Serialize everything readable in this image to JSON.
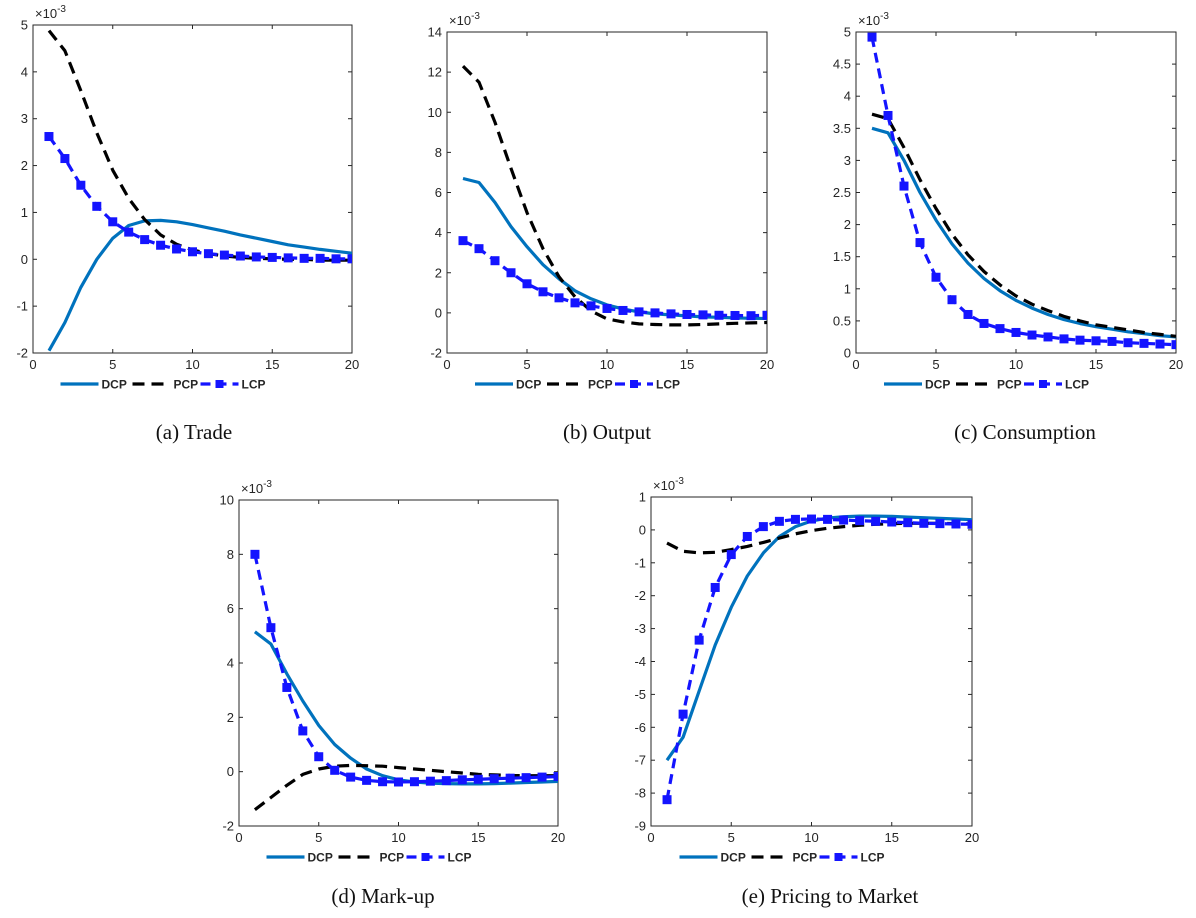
{
  "colors": {
    "dcp": "#0072BD",
    "pcp": "#000000",
    "lcp": "#1414FF",
    "axis": "#262626"
  },
  "legend_labels": [
    "DCP",
    "PCP",
    "LCP"
  ],
  "chart_data": [
    {
      "type": "line",
      "caption": "(a)  Trade",
      "exponent": "×10-3",
      "x": [
        1,
        2,
        3,
        4,
        5,
        6,
        7,
        8,
        9,
        10,
        11,
        12,
        13,
        14,
        15,
        16,
        17,
        18,
        19,
        20
      ],
      "xlim": [
        0,
        20
      ],
      "ylim": [
        -2,
        5
      ],
      "xticks": [
        0,
        5,
        10,
        15,
        20
      ],
      "yticks": [
        -2,
        -1,
        0,
        1,
        2,
        3,
        4,
        5
      ],
      "series": [
        {
          "name": "DCP",
          "values": [
            -1.95,
            -1.35,
            -0.6,
            0.0,
            0.45,
            0.72,
            0.82,
            0.83,
            0.8,
            0.74,
            0.67,
            0.6,
            0.52,
            0.45,
            0.38,
            0.31,
            0.26,
            0.21,
            0.17,
            0.13
          ]
        },
        {
          "name": "PCP",
          "values": [
            4.88,
            4.45,
            3.6,
            2.7,
            1.9,
            1.3,
            0.85,
            0.52,
            0.32,
            0.2,
            0.12,
            0.07,
            0.04,
            0.02,
            0.01,
            0.0,
            0.0,
            -0.02,
            -0.02,
            -0.02
          ]
        },
        {
          "name": "LCP",
          "values": [
            2.62,
            2.15,
            1.58,
            1.13,
            0.8,
            0.58,
            0.42,
            0.3,
            0.22,
            0.16,
            0.12,
            0.09,
            0.07,
            0.05,
            0.04,
            0.03,
            0.02,
            0.02,
            0.01,
            0.01
          ]
        }
      ]
    },
    {
      "type": "line",
      "caption": "(b)  Output",
      "exponent": "×10-3",
      "x": [
        1,
        2,
        3,
        4,
        5,
        6,
        7,
        8,
        9,
        10,
        11,
        12,
        13,
        14,
        15,
        16,
        17,
        18,
        19,
        20
      ],
      "xlim": [
        0,
        20
      ],
      "ylim": [
        -2,
        14
      ],
      "xticks": [
        0,
        5,
        10,
        15,
        20
      ],
      "yticks": [
        -2,
        0,
        2,
        4,
        6,
        8,
        10,
        12,
        14
      ],
      "series": [
        {
          "name": "DCP",
          "values": [
            6.7,
            6.5,
            5.5,
            4.3,
            3.3,
            2.4,
            1.7,
            1.1,
            0.7,
            0.4,
            0.2,
            0.05,
            -0.05,
            -0.1,
            -0.15,
            -0.2,
            -0.22,
            -0.25,
            -0.27,
            -0.28
          ]
        },
        {
          "name": "PCP",
          "values": [
            12.3,
            11.5,
            9.5,
            7.2,
            5.0,
            3.2,
            1.8,
            0.8,
            0.1,
            -0.3,
            -0.45,
            -0.55,
            -0.58,
            -0.6,
            -0.6,
            -0.58,
            -0.55,
            -0.52,
            -0.5,
            -0.48
          ]
        },
        {
          "name": "LCP",
          "values": [
            3.6,
            3.2,
            2.6,
            2.0,
            1.45,
            1.05,
            0.75,
            0.5,
            0.35,
            0.22,
            0.12,
            0.05,
            0.0,
            -0.05,
            -0.08,
            -0.1,
            -0.12,
            -0.13,
            -0.14,
            -0.12
          ]
        }
      ]
    },
    {
      "type": "line",
      "caption": "(c)  Consumption",
      "exponent": "×10-3",
      "x": [
        1,
        2,
        3,
        4,
        5,
        6,
        7,
        8,
        9,
        10,
        11,
        12,
        13,
        14,
        15,
        16,
        17,
        18,
        19,
        20
      ],
      "xlim": [
        0,
        20
      ],
      "ylim": [
        0,
        5
      ],
      "xticks": [
        0,
        5,
        10,
        15,
        20
      ],
      "yticks": [
        0,
        0.5,
        1,
        1.5,
        2,
        2.5,
        3,
        3.5,
        4,
        4.5,
        5
      ],
      "series": [
        {
          "name": "DCP",
          "values": [
            3.5,
            3.43,
            3.0,
            2.5,
            2.07,
            1.7,
            1.4,
            1.16,
            0.97,
            0.82,
            0.7,
            0.6,
            0.52,
            0.46,
            0.41,
            0.37,
            0.33,
            0.3,
            0.27,
            0.25
          ]
        },
        {
          "name": "PCP",
          "values": [
            3.72,
            3.65,
            3.2,
            2.7,
            2.25,
            1.85,
            1.53,
            1.27,
            1.06,
            0.89,
            0.76,
            0.66,
            0.57,
            0.5,
            0.44,
            0.4,
            0.36,
            0.32,
            0.29,
            0.26
          ]
        },
        {
          "name": "LCP",
          "values": [
            4.92,
            3.7,
            2.6,
            1.72,
            1.18,
            0.83,
            0.6,
            0.46,
            0.38,
            0.32,
            0.28,
            0.25,
            0.22,
            0.2,
            0.19,
            0.18,
            0.16,
            0.15,
            0.14,
            0.13
          ]
        }
      ]
    },
    {
      "type": "line",
      "caption": "(d)  Mark-up",
      "exponent": "×10-3",
      "x": [
        1,
        2,
        3,
        4,
        5,
        6,
        7,
        8,
        9,
        10,
        11,
        12,
        13,
        14,
        15,
        16,
        17,
        18,
        19,
        20
      ],
      "xlim": [
        0,
        20
      ],
      "ylim": [
        -2,
        10
      ],
      "xticks": [
        0,
        5,
        10,
        15,
        20
      ],
      "yticks": [
        -2,
        0,
        2,
        4,
        6,
        8,
        10
      ],
      "series": [
        {
          "name": "DCP",
          "values": [
            5.15,
            4.7,
            3.6,
            2.6,
            1.7,
            1.0,
            0.5,
            0.1,
            -0.15,
            -0.3,
            -0.38,
            -0.42,
            -0.44,
            -0.45,
            -0.45,
            -0.44,
            -0.42,
            -0.4,
            -0.38,
            -0.36
          ]
        },
        {
          "name": "PCP",
          "values": [
            -1.4,
            -0.95,
            -0.5,
            -0.1,
            0.1,
            0.2,
            0.23,
            0.22,
            0.2,
            0.15,
            0.1,
            0.05,
            0.0,
            -0.05,
            -0.1,
            -0.12,
            -0.14,
            -0.15,
            -0.15,
            -0.15
          ]
        },
        {
          "name": "LCP",
          "values": [
            8.0,
            5.3,
            3.1,
            1.5,
            0.55,
            0.05,
            -0.2,
            -0.32,
            -0.37,
            -0.38,
            -0.37,
            -0.35,
            -0.33,
            -0.3,
            -0.28,
            -0.26,
            -0.24,
            -0.22,
            -0.2,
            -0.18
          ]
        }
      ]
    },
    {
      "type": "line",
      "caption": "(e)  Pricing to Market",
      "exponent": "×10-3",
      "x": [
        1,
        2,
        3,
        4,
        5,
        6,
        7,
        8,
        9,
        10,
        11,
        12,
        13,
        14,
        15,
        16,
        17,
        18,
        19,
        20
      ],
      "xlim": [
        0,
        20
      ],
      "ylim": [
        -9,
        1
      ],
      "xticks": [
        0,
        5,
        10,
        15,
        20
      ],
      "yticks": [
        -9,
        -8,
        -7,
        -6,
        -5,
        -4,
        -3,
        -2,
        -1,
        0,
        1
      ],
      "series": [
        {
          "name": "DCP",
          "values": [
            -7.0,
            -6.3,
            -4.9,
            -3.5,
            -2.35,
            -1.4,
            -0.7,
            -0.2,
            0.1,
            0.27,
            0.36,
            0.4,
            0.42,
            0.42,
            0.41,
            0.39,
            0.37,
            0.35,
            0.33,
            0.31
          ]
        },
        {
          "name": "PCP",
          "values": [
            -0.4,
            -0.65,
            -0.7,
            -0.68,
            -0.6,
            -0.5,
            -0.38,
            -0.25,
            -0.12,
            -0.02,
            0.05,
            0.1,
            0.14,
            0.17,
            0.19,
            0.2,
            0.2,
            0.2,
            0.19,
            0.18
          ]
        },
        {
          "name": "LCP",
          "values": [
            -8.2,
            -5.6,
            -3.35,
            -1.75,
            -0.75,
            -0.2,
            0.1,
            0.26,
            0.32,
            0.33,
            0.32,
            0.3,
            0.28,
            0.26,
            0.24,
            0.22,
            0.2,
            0.19,
            0.18,
            0.17
          ]
        }
      ]
    }
  ]
}
